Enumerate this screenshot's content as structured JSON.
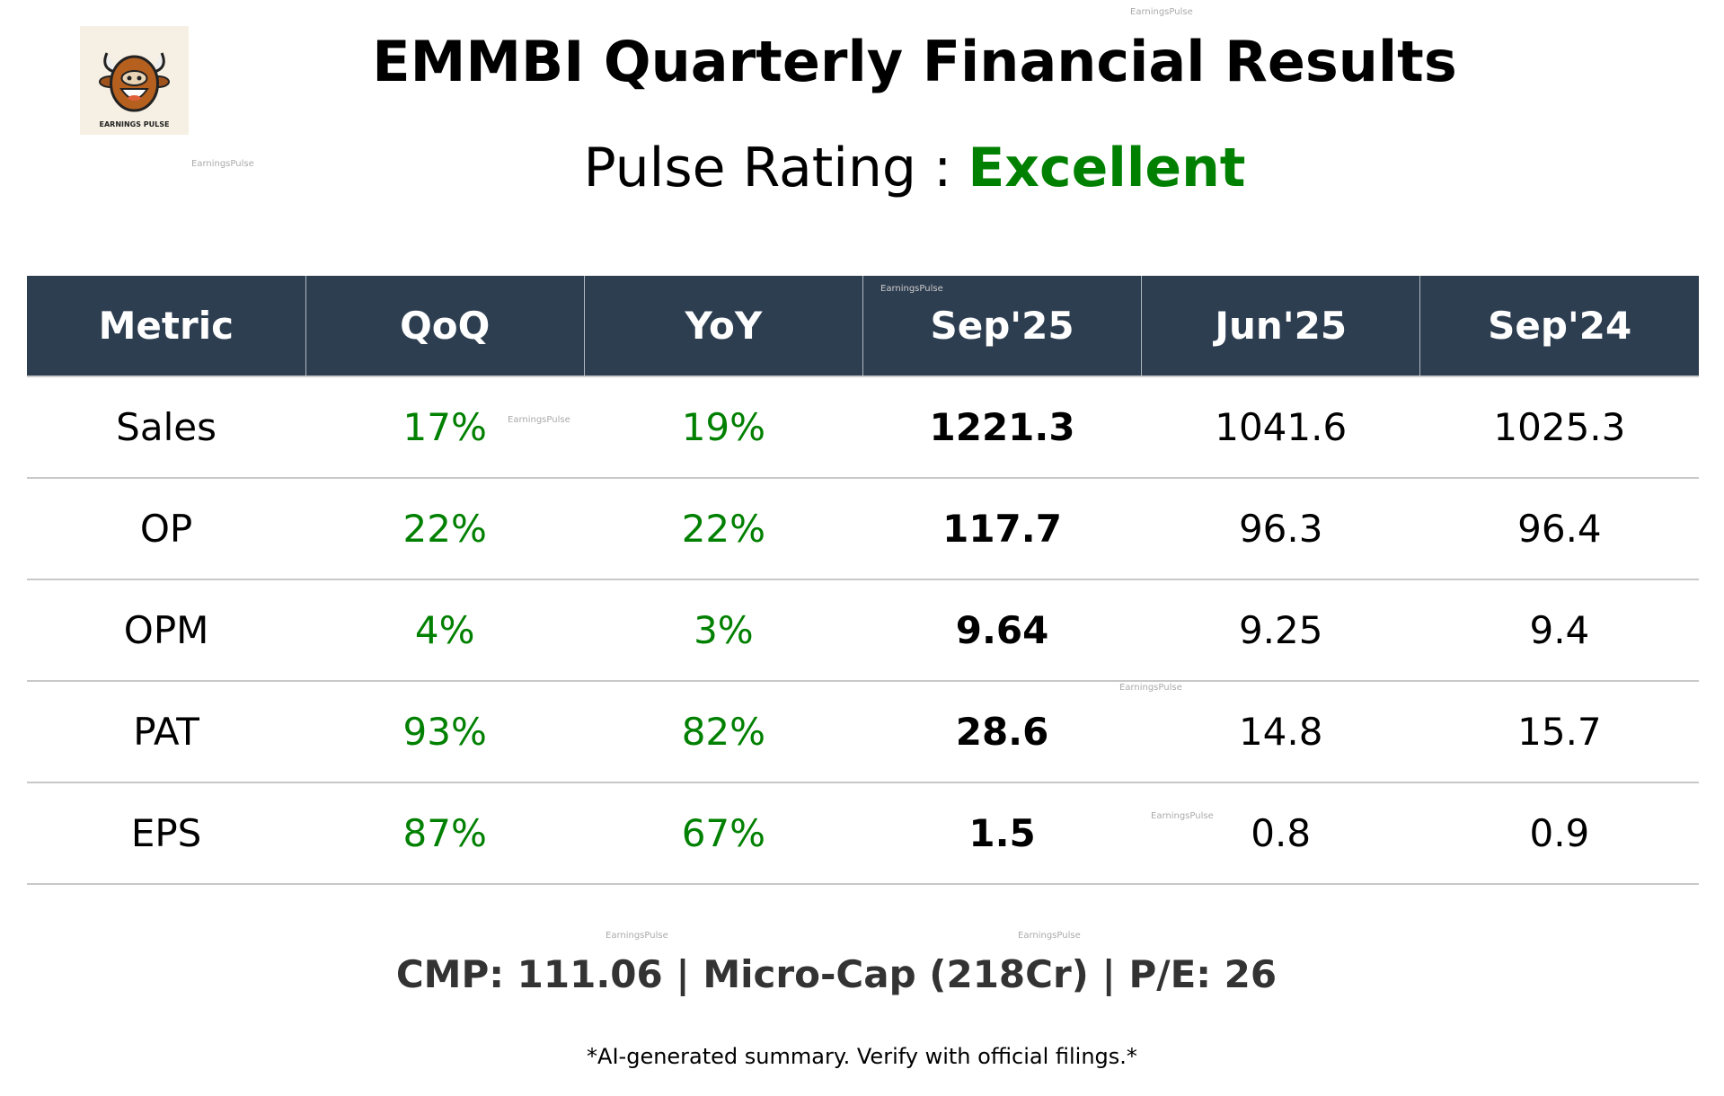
{
  "logo": {
    "text": "EARNINGS PULSE",
    "icon": "bull-face-logo"
  },
  "watermark": "EarningsPulse",
  "title": "EMMBI Quarterly Financial Results",
  "rating": {
    "label": "Pulse Rating :",
    "value": "Excellent",
    "color": "#008000"
  },
  "table": {
    "headers": [
      "Metric",
      "QoQ",
      "YoY",
      "Sep'25",
      "Jun'25",
      "Sep'24"
    ],
    "rows": [
      [
        "Sales",
        "17%",
        "19%",
        "1221.3",
        "1041.6",
        "1025.3"
      ],
      [
        "OP",
        "22%",
        "22%",
        "117.7",
        "96.3",
        "96.4"
      ],
      [
        "OPM",
        "4%",
        "3%",
        "9.64",
        "9.25",
        "9.4"
      ],
      [
        "PAT",
        "93%",
        "82%",
        "28.6",
        "14.8",
        "15.7"
      ],
      [
        "EPS",
        "87%",
        "67%",
        "1.5",
        "0.8",
        "0.9"
      ]
    ],
    "header_bg": "#2e3e51",
    "positive_color": "#008000"
  },
  "footer": {
    "cmp": "CMP: 111.06 | Micro-Cap (218Cr) | P/E: 26",
    "disclaimer": "*AI-generated summary. Verify with official filings.*"
  }
}
